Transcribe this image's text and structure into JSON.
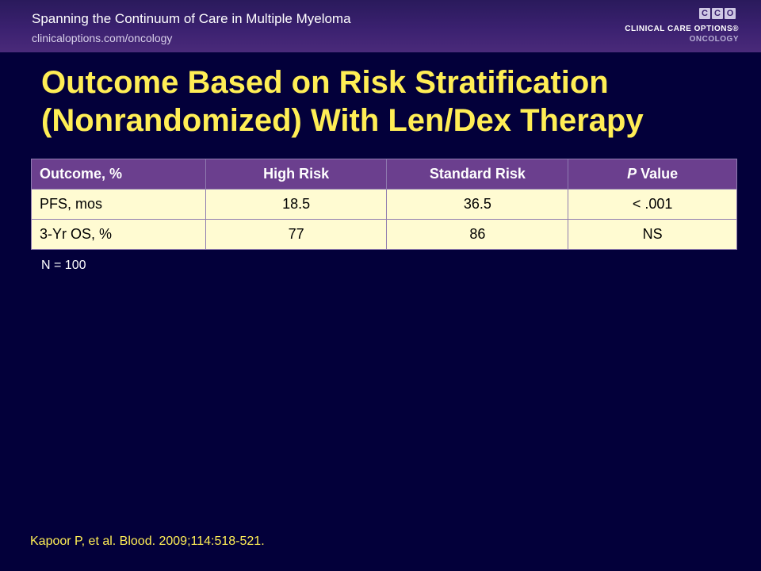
{
  "header": {
    "course": "Spanning the Continuum of Care in Multiple Myeloma",
    "url": "clinicaloptions.com/oncology",
    "logo_letters": [
      "C",
      "C",
      "O"
    ],
    "logo_brand": "CLINICAL CARE OPTIONS®",
    "logo_sub": "ONCOLOGY"
  },
  "title_line1": "Outcome Based on Risk Stratification",
  "title_line2": "(Nonrandomized) With Len/Dex Therapy",
  "table": {
    "headers": {
      "outcome": "Outcome, %",
      "high": "High Risk",
      "standard": "Standard Risk",
      "p_italic": "P",
      "p_rest": " Value"
    },
    "rows": [
      [
        "PFS, mos",
        "18.5",
        "36.5",
        "< .001"
      ],
      [
        "3-Yr OS, %",
        "77",
        "86",
        "NS"
      ]
    ]
  },
  "note": "N = 100",
  "citation": "Kapoor P, et al. Blood. 2009;114:518-521.",
  "colors": {
    "background": "#03003a",
    "title": "#ffee55",
    "header_bg": "#6b3f8e",
    "cell_bg": "#fffbd2"
  }
}
